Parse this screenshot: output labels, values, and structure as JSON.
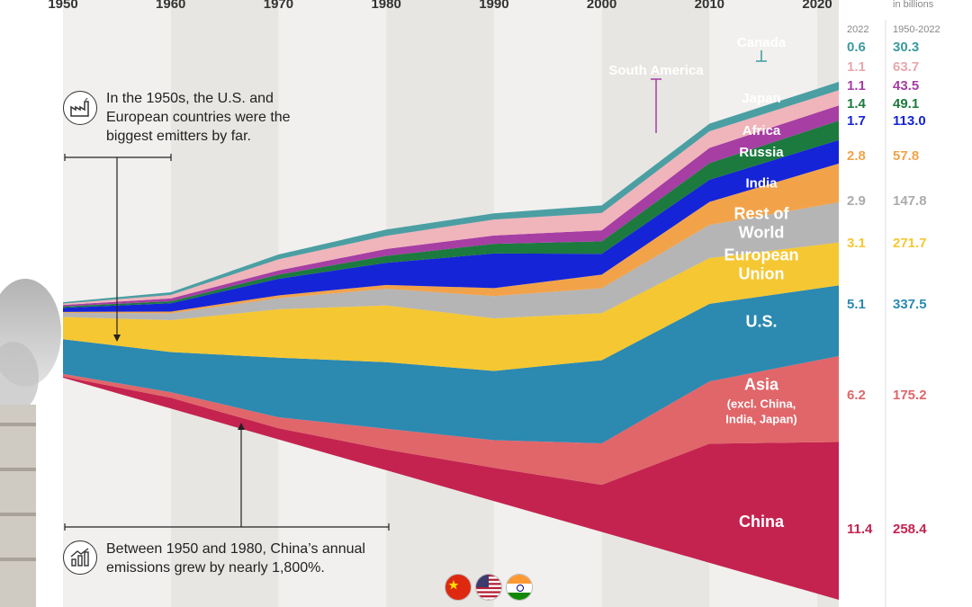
{
  "chart_data": {
    "type": "area",
    "title": "",
    "x": [
      1950,
      1960,
      1970,
      1980,
      1990,
      2000,
      2010,
      2022
    ],
    "x_tick_labels": [
      "1950",
      "1960",
      "1970",
      "1980",
      "1990",
      "2000",
      "2010",
      "2020"
    ],
    "xlim": [
      1950,
      2022
    ],
    "stack_order_bottom_to_top": [
      "China",
      "Asia",
      "U.S.",
      "European Union",
      "Rest of World",
      "India",
      "Russia",
      "Africa",
      "South America",
      "Japan",
      "Canada"
    ],
    "series": [
      {
        "name": "China",
        "color": "#c4234f",
        "values": [
          0.08,
          0.78,
          0.8,
          1.5,
          2.4,
          3.4,
          8.6,
          11.4
        ]
      },
      {
        "name": "Asia",
        "sublabel": "(excl. China, India, Japan)",
        "color": "#e0666a",
        "values": [
          0.2,
          0.4,
          0.8,
          1.5,
          2.0,
          3.0,
          4.5,
          6.2
        ]
      },
      {
        "name": "U.S.",
        "color": "#2c89b0",
        "values": [
          2.5,
          2.9,
          4.3,
          4.8,
          5.0,
          6.0,
          5.6,
          5.1
        ]
      },
      {
        "name": "European Union",
        "color": "#f5c732",
        "values": [
          1.6,
          2.3,
          3.5,
          4.1,
          3.8,
          3.4,
          3.3,
          3.1
        ]
      },
      {
        "name": "Rest of World",
        "color": "#b5b5b5",
        "values": [
          0.3,
          0.5,
          0.8,
          1.2,
          1.6,
          1.8,
          2.4,
          2.9
        ]
      },
      {
        "name": "India",
        "color": "#f2a34a",
        "values": [
          0.07,
          0.12,
          0.2,
          0.28,
          0.58,
          0.98,
          1.66,
          2.8
        ]
      },
      {
        "name": "Russia",
        "color": "#1524d6",
        "values": [
          0.3,
          0.6,
          1.2,
          1.6,
          2.5,
          1.5,
          1.6,
          1.7
        ]
      },
      {
        "name": "Africa",
        "color": "#1c7a3e",
        "values": [
          0.1,
          0.15,
          0.3,
          0.5,
          0.7,
          0.9,
          1.2,
          1.4
        ]
      },
      {
        "name": "South America",
        "color": "#a63ea4",
        "values": [
          0.1,
          0.2,
          0.3,
          0.5,
          0.6,
          0.8,
          1.1,
          1.1
        ]
      },
      {
        "name": "Japan",
        "color": "#f0b4bb",
        "values": [
          0.1,
          0.25,
          0.8,
          0.95,
          1.15,
          1.25,
          1.2,
          1.1
        ]
      },
      {
        "name": "Canada",
        "color": "#4b9fa3",
        "values": [
          0.1,
          0.2,
          0.35,
          0.45,
          0.45,
          0.55,
          0.55,
          0.6
        ]
      }
    ],
    "right_panel": {
      "subtitle": "in billions",
      "col1_header": "2022",
      "col2_header": "1950-2022",
      "rows": [
        {
          "name": "Canada",
          "v2022": "0.6",
          "cum": "30.3",
          "color": "#3a9a9e"
        },
        {
          "name": "Japan",
          "v2022": "1.1",
          "cum": "63.7",
          "color": "#e7a8ac"
        },
        {
          "name": "South America",
          "v2022": "1.1",
          "cum": "43.5",
          "color": "#a63ea4"
        },
        {
          "name": "Africa",
          "v2022": "1.4",
          "cum": "49.1",
          "color": "#1c7a3e"
        },
        {
          "name": "Russia",
          "v2022": "1.7",
          "cum": "113.0",
          "color": "#1524d6"
        },
        {
          "name": "India",
          "v2022": "2.8",
          "cum": "57.8",
          "color": "#f2a34a"
        },
        {
          "name": "Rest of World",
          "v2022": "2.9",
          "cum": "147.8",
          "color": "#ababab"
        },
        {
          "name": "European Union",
          "v2022": "3.1",
          "cum": "271.7",
          "color": "#f5c732"
        },
        {
          "name": "U.S.",
          "v2022": "5.1",
          "cum": "337.5",
          "color": "#2c89b0"
        },
        {
          "name": "Asia",
          "v2022": "6.2",
          "cum": "175.2",
          "color": "#e0666a"
        },
        {
          "name": "China",
          "v2022": "11.4",
          "cum": "258.4",
          "color": "#c4234f"
        }
      ]
    },
    "annotations": [
      "In the 1950s, the U.S. and European countries were the biggest emitters by far.",
      "Between 1950 and 1980, China’s annual emissions grew by nearly 1,800%."
    ]
  },
  "labels": {
    "region_labels": [
      "Canada",
      "South America",
      "Japan",
      "Africa",
      "Russia",
      "India",
      "Rest of",
      "World",
      "European",
      "Union",
      "U.S.",
      "Asia",
      "(excl. China,",
      "India, Japan)",
      "China"
    ]
  },
  "callouts": {
    "top_line1": "In the 1950s, the U.S. and",
    "top_line2": "European countries were the",
    "top_line3": "biggest emitters by far.",
    "bottom_line1": "Between 1950 and 1980, China’s annual",
    "bottom_line2": "emissions grew by nearly 1,800%."
  },
  "icons": {
    "top": "factory-icon",
    "bottom": "growth-chart-icon",
    "flags": [
      "china-flag-icon",
      "us-flag-icon",
      "india-flag-icon"
    ]
  }
}
